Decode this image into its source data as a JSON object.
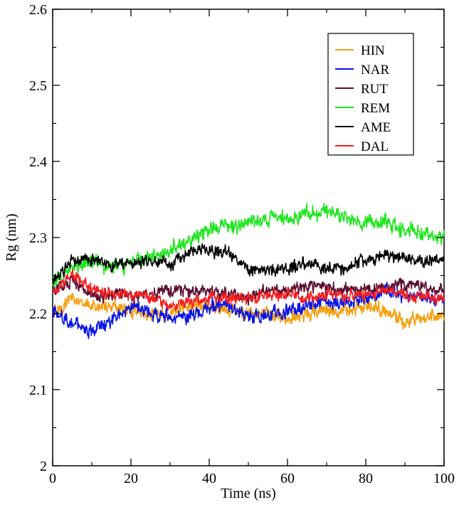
{
  "chart_data": {
    "type": "line",
    "title": "",
    "xlabel": "Time (ns)",
    "ylabel": "Rg (nm)",
    "xlim": [
      0,
      100
    ],
    "ylim": [
      2.0,
      2.6
    ],
    "x_ticks": [
      0,
      20,
      40,
      60,
      80,
      100
    ],
    "x_tick_labels": [
      "0",
      "20",
      "40",
      "60",
      "80",
      "100"
    ],
    "y_ticks": [
      2.0,
      2.1,
      2.2,
      2.3,
      2.4,
      2.5,
      2.6
    ],
    "y_tick_labels": [
      "2",
      "2.1",
      "2.2",
      "2.3",
      "2.4",
      "2.5",
      "2.6"
    ],
    "grid": false,
    "legend_position": "top-right",
    "x": [
      0,
      5,
      10,
      15,
      20,
      25,
      30,
      35,
      40,
      45,
      50,
      55,
      60,
      65,
      70,
      75,
      80,
      85,
      90,
      95,
      100
    ],
    "series": [
      {
        "name": "HIN",
        "color": "#f5a00f",
        "values": [
          2.2,
          2.22,
          2.21,
          2.21,
          2.205,
          2.2,
          2.2,
          2.21,
          2.21,
          2.205,
          2.2,
          2.2,
          2.195,
          2.2,
          2.205,
          2.205,
          2.21,
          2.205,
          2.19,
          2.195,
          2.2
        ]
      },
      {
        "name": "NAR",
        "color": "#0a14e6",
        "values": [
          2.2,
          2.19,
          2.175,
          2.19,
          2.21,
          2.2,
          2.195,
          2.195,
          2.21,
          2.21,
          2.195,
          2.2,
          2.205,
          2.21,
          2.215,
          2.215,
          2.22,
          2.23,
          2.225,
          2.22,
          2.22
        ]
      },
      {
        "name": "RUT",
        "color": "#5a0f32",
        "values": [
          2.23,
          2.24,
          2.225,
          2.225,
          2.225,
          2.225,
          2.23,
          2.23,
          2.23,
          2.225,
          2.22,
          2.23,
          2.23,
          2.235,
          2.235,
          2.23,
          2.23,
          2.235,
          2.24,
          2.235,
          2.23
        ]
      },
      {
        "name": "REM",
        "color": "#1ee61e",
        "values": [
          2.24,
          2.26,
          2.27,
          2.26,
          2.265,
          2.275,
          2.285,
          2.295,
          2.31,
          2.315,
          2.32,
          2.325,
          2.325,
          2.33,
          2.335,
          2.325,
          2.32,
          2.32,
          2.31,
          2.305,
          2.3
        ]
      },
      {
        "name": "AME",
        "color": "#000000",
        "values": [
          2.24,
          2.27,
          2.27,
          2.265,
          2.265,
          2.27,
          2.265,
          2.28,
          2.285,
          2.28,
          2.26,
          2.255,
          2.26,
          2.265,
          2.26,
          2.26,
          2.27,
          2.275,
          2.275,
          2.27,
          2.27
        ]
      },
      {
        "name": "DAL",
        "color": "#f51e1e",
        "values": [
          2.23,
          2.25,
          2.235,
          2.225,
          2.225,
          2.22,
          2.21,
          2.215,
          2.22,
          2.22,
          2.22,
          2.225,
          2.225,
          2.22,
          2.225,
          2.225,
          2.225,
          2.23,
          2.225,
          2.22,
          2.22
        ]
      }
    ]
  }
}
